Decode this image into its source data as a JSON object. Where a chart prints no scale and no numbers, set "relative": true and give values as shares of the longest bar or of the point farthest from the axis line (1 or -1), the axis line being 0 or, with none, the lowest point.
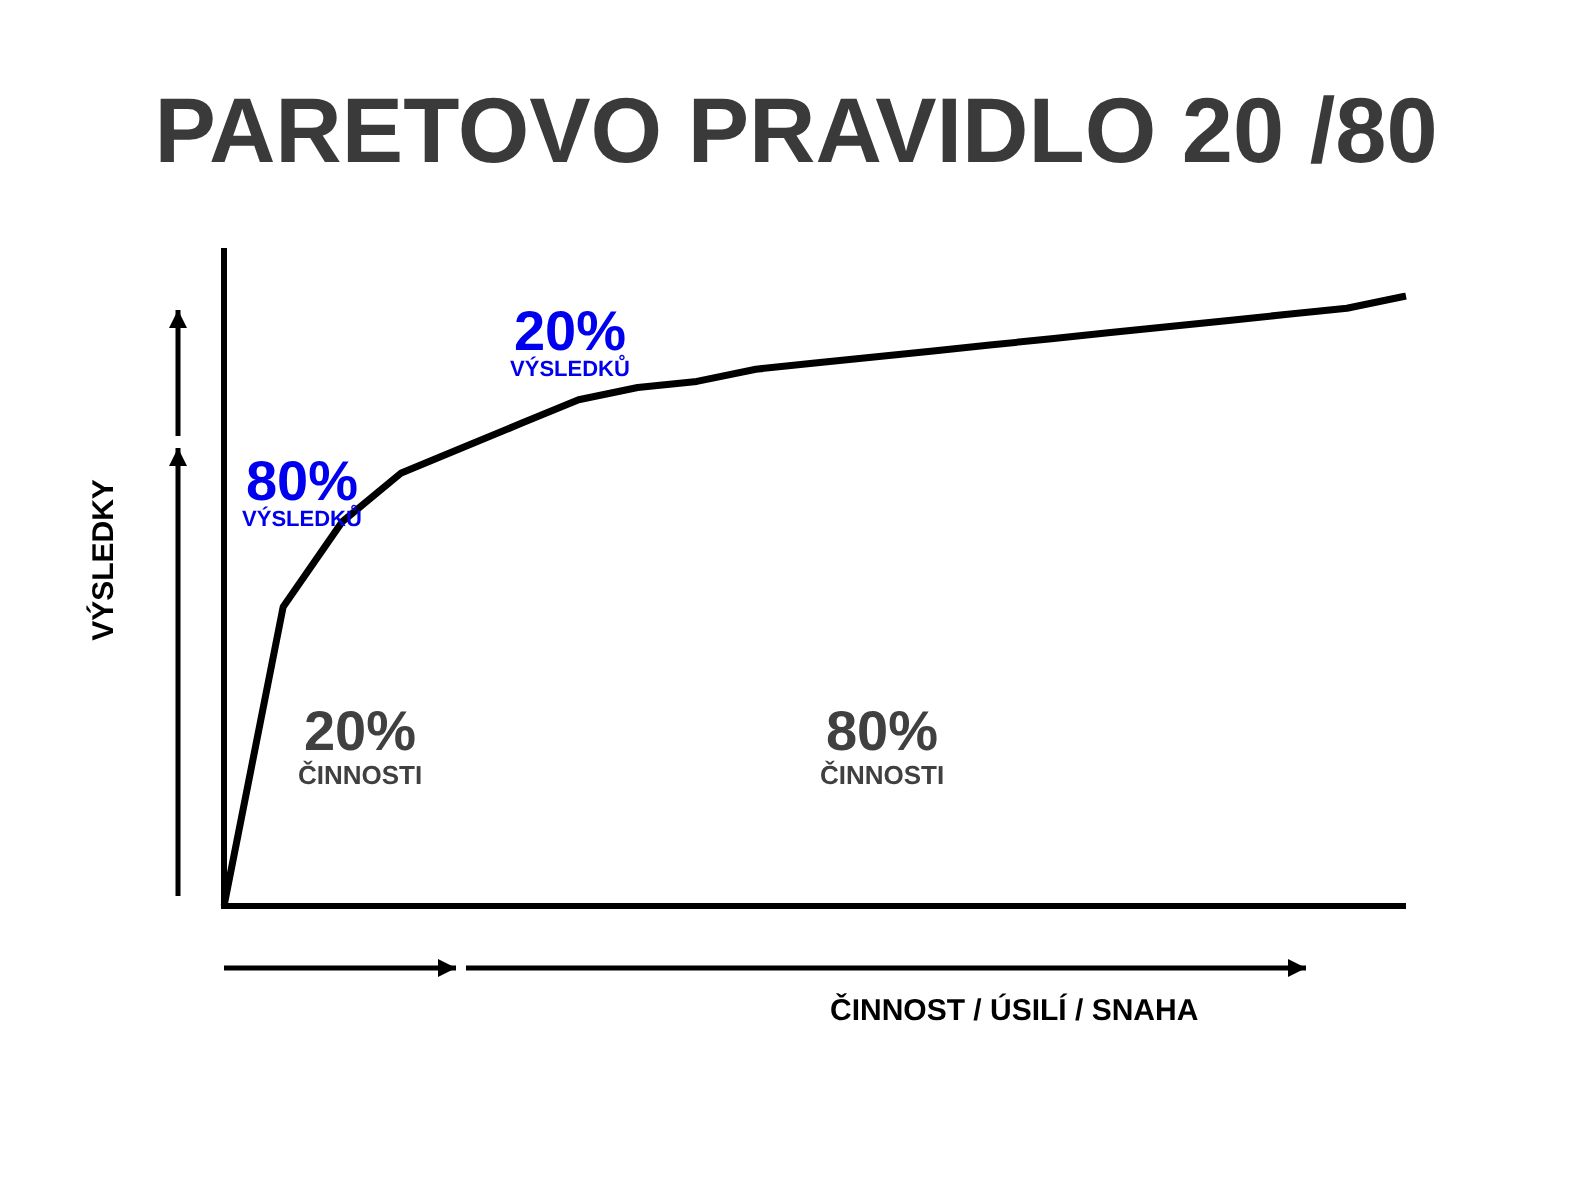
{
  "chart_data": {
    "type": "line",
    "title": "PARETOVO PRAVIDLO 20 /80",
    "xlabel": "ČINNOST / ÚSILÍ / SNAHA",
    "ylabel": "VÝSLEDKY",
    "relative": true,
    "categories": [
      null,
      null,
      null,
      null,
      null,
      null,
      null,
      null,
      null,
      null,
      null,
      null,
      null,
      null,
      null,
      null,
      null,
      null,
      null,
      null,
      null
    ],
    "series": [
      {
        "color": "#000000",
        "values": [
          0,
          0.49,
          0.63,
          0.71,
          0.75,
          0.79,
          0.83,
          0.85,
          0.86,
          0.88,
          0.89,
          0.9,
          0.91,
          0.92,
          0.93,
          0.94,
          0.95,
          0.96,
          0.97,
          0.98,
          1
        ]
      }
    ],
    "annotations": [
      "20%\nVÝSLEDKŮ",
      "80%\nVÝSLEDKŮ",
      "20%\nČINNOSTI",
      "80%\nČINNOSTI"
    ],
    "legend": false,
    "marker": "none",
    "line_style": "solid"
  }
}
